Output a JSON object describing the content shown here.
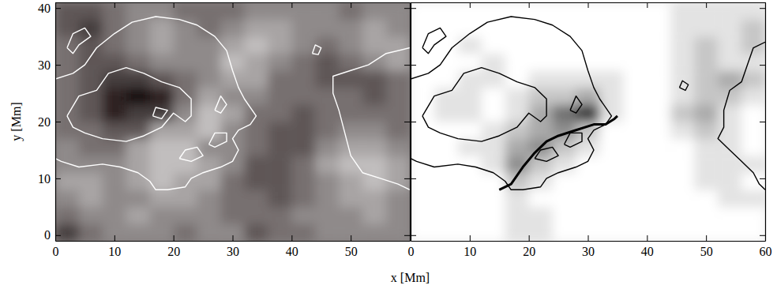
{
  "chart_data": [
    {
      "type": "heatmap",
      "xlabel": "x  [Mm]",
      "ylabel": "y  [Mm]",
      "xlim": [
        0,
        60
      ],
      "ylim": [
        -1,
        41
      ],
      "xticks": [
        0,
        10,
        20,
        30,
        40,
        50
      ],
      "yticks": [
        0,
        10,
        20,
        30,
        40
      ],
      "tick_labels": true,
      "xbins": [
        0,
        4,
        8,
        12,
        16,
        20,
        24,
        28,
        32,
        36,
        40,
        44,
        48,
        52,
        56,
        60
      ],
      "ybins": [
        -1,
        2,
        5,
        8,
        11,
        14,
        17,
        20,
        23,
        26,
        29,
        32,
        35,
        38,
        41
      ],
      "color_range": [
        0,
        9
      ],
      "colors": [
        "#140808",
        "#f2f2f2"
      ],
      "values": [
        [
          2,
          4,
          5,
          5,
          5,
          4,
          5,
          5,
          3,
          4,
          4,
          5,
          5,
          5,
          5
        ],
        [
          4,
          5,
          5,
          6,
          5,
          5,
          5,
          4,
          4,
          4,
          5,
          5,
          5,
          6,
          5
        ],
        [
          5,
          6,
          5,
          5,
          6,
          6,
          5,
          4,
          4,
          3,
          4,
          5,
          6,
          6,
          5
        ],
        [
          6,
          6,
          5,
          6,
          7,
          6,
          6,
          4,
          3,
          3,
          4,
          5,
          6,
          7,
          6
        ],
        [
          5,
          5,
          5,
          6,
          7,
          7,
          6,
          5,
          3,
          3,
          4,
          6,
          7,
          7,
          6
        ],
        [
          5,
          4,
          4,
          6,
          7,
          7,
          5,
          5,
          4,
          3,
          3,
          5,
          6,
          6,
          5
        ],
        [
          4,
          4,
          3,
          3,
          6,
          6,
          7,
          5,
          4,
          3,
          3,
          4,
          5,
          5,
          4
        ],
        [
          4,
          3,
          1,
          2,
          2,
          5,
          7,
          6,
          4,
          4,
          3,
          4,
          4,
          4,
          4
        ],
        [
          4,
          3,
          1,
          0,
          1,
          4,
          6,
          5,
          5,
          4,
          4,
          4,
          4,
          3,
          4
        ],
        [
          4,
          3,
          2,
          2,
          3,
          4,
          5,
          6,
          6,
          4,
          4,
          3,
          3,
          3,
          4
        ],
        [
          4,
          3,
          3,
          4,
          5,
          5,
          5,
          7,
          6,
          5,
          4,
          3,
          4,
          5,
          6
        ],
        [
          4,
          3,
          4,
          5,
          6,
          5,
          5,
          6,
          7,
          6,
          5,
          4,
          5,
          6,
          6
        ],
        [
          3,
          2,
          4,
          5,
          6,
          5,
          4,
          5,
          6,
          6,
          5,
          5,
          5,
          6,
          5
        ],
        [
          3,
          3,
          4,
          5,
          5,
          4,
          4,
          4,
          5,
          5,
          5,
          5,
          4,
          5,
          5
        ]
      ],
      "series": [
        {
          "type": "line",
          "color": "#ffffff",
          "line_style": "solid",
          "x": [
            0,
            3,
            5,
            7,
            10,
            13,
            17,
            21,
            24,
            27,
            29,
            30,
            31,
            32,
            34,
            33,
            31,
            30,
            31,
            30,
            28,
            25,
            23,
            22,
            19,
            17,
            16,
            14,
            11,
            8,
            4,
            1,
            0
          ],
          "y": [
            27.5,
            28.5,
            30,
            33,
            35.5,
            37.5,
            38.5,
            38,
            37,
            35,
            32.5,
            29,
            26,
            24,
            21,
            19.5,
            18.5,
            17,
            15,
            13,
            12,
            11,
            10,
            8.5,
            8,
            8,
            9.5,
            11,
            12,
            12.5,
            12,
            13,
            13.5
          ]
        },
        {
          "type": "line",
          "color": "#ffffff",
          "line_style": "solid",
          "x": [
            2,
            4,
            7,
            9,
            12,
            15,
            18,
            21,
            23,
            23,
            22,
            20,
            18,
            15,
            12,
            8,
            5,
            3,
            2
          ],
          "y": [
            21,
            24.5,
            25.5,
            28.5,
            29.5,
            28.5,
            27,
            26,
            24,
            21,
            20,
            21.5,
            19,
            17.5,
            16.5,
            17,
            18,
            19,
            21
          ]
        },
        {
          "type": "line",
          "color": "#ffffff",
          "line_style": "solid",
          "x": [
            2,
            3,
            5,
            6,
            4,
            3,
            2
          ],
          "y": [
            33,
            35.5,
            36.5,
            35,
            33.5,
            32,
            33
          ]
        },
        {
          "type": "line",
          "color": "#ffffff",
          "line_style": "solid",
          "x": [
            21,
            22,
            24,
            25,
            23,
            21
          ],
          "y": [
            13.5,
            15,
            15.5,
            14,
            13,
            13.5
          ]
        },
        {
          "type": "line",
          "color": "#ffffff",
          "line_style": "solid",
          "x": [
            26,
            27,
            29,
            29,
            27,
            26
          ],
          "y": [
            16,
            18,
            18,
            16.5,
            15.5,
            16
          ]
        },
        {
          "type": "line",
          "color": "#ffffff",
          "line_style": "solid",
          "x": [
            27,
            28,
            29,
            28,
            27
          ],
          "y": [
            22,
            24.5,
            23,
            21.5,
            22
          ]
        },
        {
          "type": "line",
          "color": "#ffffff",
          "line_style": "solid",
          "x": [
            16.5,
            17,
            19,
            18,
            16.5
          ],
          "y": [
            21,
            22.5,
            22,
            20.5,
            21
          ]
        },
        {
          "type": "line",
          "color": "#ffffff",
          "line_style": "solid",
          "x": [
            43.5,
            44,
            45,
            44.5,
            43.5
          ],
          "y": [
            32,
            33.5,
            33,
            31.8,
            32
          ]
        },
        {
          "type": "line",
          "color": "#ffffff",
          "line_style": "solid",
          "x": [
            60,
            56,
            53,
            50,
            47,
            47,
            48,
            49,
            50,
            52,
            55,
            58,
            60
          ],
          "y": [
            33,
            32,
            30,
            29,
            28,
            25,
            22,
            18,
            14,
            11,
            10,
            9,
            8
          ]
        }
      ]
    },
    {
      "type": "heatmap",
      "xlim": [
        0,
        60
      ],
      "ylim": [
        -1,
        41
      ],
      "xticks": [
        0,
        10,
        20,
        30,
        40,
        50,
        60
      ],
      "yticks": [
        0,
        10,
        20,
        30,
        40
      ],
      "tick_labels": "x",
      "xbins": [
        0,
        4,
        8,
        12,
        16,
        20,
        24,
        28,
        32,
        36,
        40,
        44,
        48,
        52,
        56,
        60
      ],
      "ybins": [
        -1,
        2,
        5,
        8,
        11,
        14,
        17,
        20,
        23,
        26,
        29,
        32,
        35,
        38,
        41
      ],
      "color_range": [
        0,
        9
      ],
      "colors": [
        "#ffffff",
        "#000000"
      ],
      "values": [
        [
          0,
          0,
          0,
          0,
          1,
          1,
          0,
          0,
          0,
          0,
          0,
          0,
          0,
          0,
          0
        ],
        [
          0,
          0,
          0,
          0,
          1,
          1,
          0,
          0,
          0,
          0,
          0,
          0,
          0,
          0,
          0
        ],
        [
          0,
          0,
          0,
          0,
          1,
          0,
          0,
          0,
          0,
          0,
          0,
          0,
          0,
          1,
          1
        ],
        [
          0,
          0,
          0,
          0,
          2,
          1,
          0,
          0,
          0,
          0,
          0,
          0,
          1,
          1,
          0
        ],
        [
          0,
          0,
          0,
          1,
          4,
          2,
          1,
          0,
          0,
          0,
          0,
          0,
          1,
          1,
          1
        ],
        [
          0,
          0,
          1,
          1,
          3,
          4,
          2,
          1,
          0,
          0,
          0,
          0,
          1,
          1,
          0
        ],
        [
          0,
          0,
          0,
          1,
          2,
          3,
          4,
          2,
          0,
          0,
          0,
          1,
          2,
          1,
          0
        ],
        [
          0,
          1,
          1,
          0,
          1,
          3,
          5,
          7,
          1,
          0,
          0,
          2,
          3,
          1,
          0
        ],
        [
          0,
          1,
          1,
          0,
          1,
          2,
          2,
          3,
          1,
          0,
          0,
          1,
          2,
          2,
          1
        ],
        [
          0,
          0,
          1,
          1,
          0,
          1,
          1,
          1,
          1,
          0,
          0,
          1,
          2,
          3,
          2
        ],
        [
          0,
          0,
          0,
          1,
          0,
          0,
          0,
          0,
          0,
          0,
          0,
          1,
          2,
          1,
          1
        ],
        [
          0,
          0,
          1,
          0,
          0,
          0,
          0,
          0,
          0,
          0,
          0,
          1,
          2,
          1,
          2
        ],
        [
          0,
          0,
          0,
          0,
          0,
          0,
          0,
          0,
          0,
          0,
          0,
          1,
          1,
          1,
          2
        ],
        [
          0,
          0,
          0,
          0,
          0,
          0,
          0,
          0,
          0,
          0,
          0,
          1,
          1,
          1,
          1
        ]
      ],
      "series": [
        {
          "type": "line",
          "color": "#000000",
          "line_style": "solid",
          "x": [
            0,
            3,
            5,
            7,
            10,
            13,
            17,
            21,
            24,
            27,
            29,
            30,
            31,
            32,
            34,
            33,
            31,
            30,
            31,
            30,
            28,
            25,
            23,
            22,
            19,
            17,
            16,
            14,
            11,
            8,
            4,
            1,
            0
          ],
          "y": [
            27.5,
            28.5,
            30,
            33,
            35.5,
            37.5,
            38.5,
            38,
            37,
            35,
            32.5,
            29,
            26,
            24,
            21,
            19.5,
            18.5,
            17,
            15,
            13,
            12,
            11,
            10,
            8.5,
            8,
            8,
            9.5,
            11,
            12,
            12.5,
            12,
            13,
            13.5
          ]
        },
        {
          "type": "line",
          "color": "#000000",
          "line_style": "solid",
          "x": [
            2,
            4,
            7,
            9,
            12,
            15,
            18,
            21,
            23,
            23,
            22,
            20,
            18,
            15,
            12,
            8,
            5,
            3,
            2
          ],
          "y": [
            21,
            24.5,
            25.5,
            28.5,
            29.5,
            28.5,
            27,
            26,
            24,
            21,
            20,
            21.5,
            19,
            17.5,
            16.5,
            17,
            18,
            19,
            21
          ]
        },
        {
          "type": "line",
          "color": "#000000",
          "line_style": "solid",
          "x": [
            2,
            3,
            5,
            6,
            4,
            3,
            2
          ],
          "y": [
            33,
            35.5,
            36.5,
            35,
            33.5,
            32,
            33
          ]
        },
        {
          "type": "line",
          "color": "#000000",
          "line_style": "solid",
          "x": [
            21,
            22,
            24,
            25,
            23,
            21
          ],
          "y": [
            13.5,
            15,
            15.5,
            14,
            13,
            13.5
          ]
        },
        {
          "type": "line",
          "color": "#000000",
          "line_style": "solid",
          "x": [
            26,
            27,
            29,
            29,
            27,
            26
          ],
          "y": [
            16,
            18,
            18,
            16.5,
            15.5,
            16
          ]
        },
        {
          "type": "line",
          "color": "#000000",
          "line_style": "solid",
          "x": [
            27,
            28,
            29,
            28,
            27
          ],
          "y": [
            22,
            24.5,
            23,
            21.5,
            22
          ]
        },
        {
          "type": "line",
          "color": "#000000",
          "line_style": "solid",
          "x": [
            45.5,
            46,
            47,
            46.5,
            45.5
          ],
          "y": [
            26,
            27.2,
            26.5,
            25.5,
            26
          ]
        },
        {
          "type": "line",
          "color": "#000000",
          "line_style": "solid",
          "x": [
            60,
            58,
            57,
            56,
            54,
            53,
            53,
            52,
            54,
            56,
            58,
            59,
            60
          ],
          "y": [
            34,
            33,
            30,
            27,
            25.5,
            22,
            19,
            17,
            15,
            13,
            11,
            9,
            8
          ]
        },
        {
          "type": "line",
          "color": "#000000",
          "line_style": "thick",
          "x": [
            15,
            17,
            19,
            21,
            23,
            25,
            28,
            31,
            33,
            34.5,
            35
          ],
          "y": [
            8,
            9,
            12,
            14.5,
            16.5,
            17.5,
            18.5,
            19.5,
            19.5,
            20.5,
            21
          ]
        }
      ]
    }
  ]
}
